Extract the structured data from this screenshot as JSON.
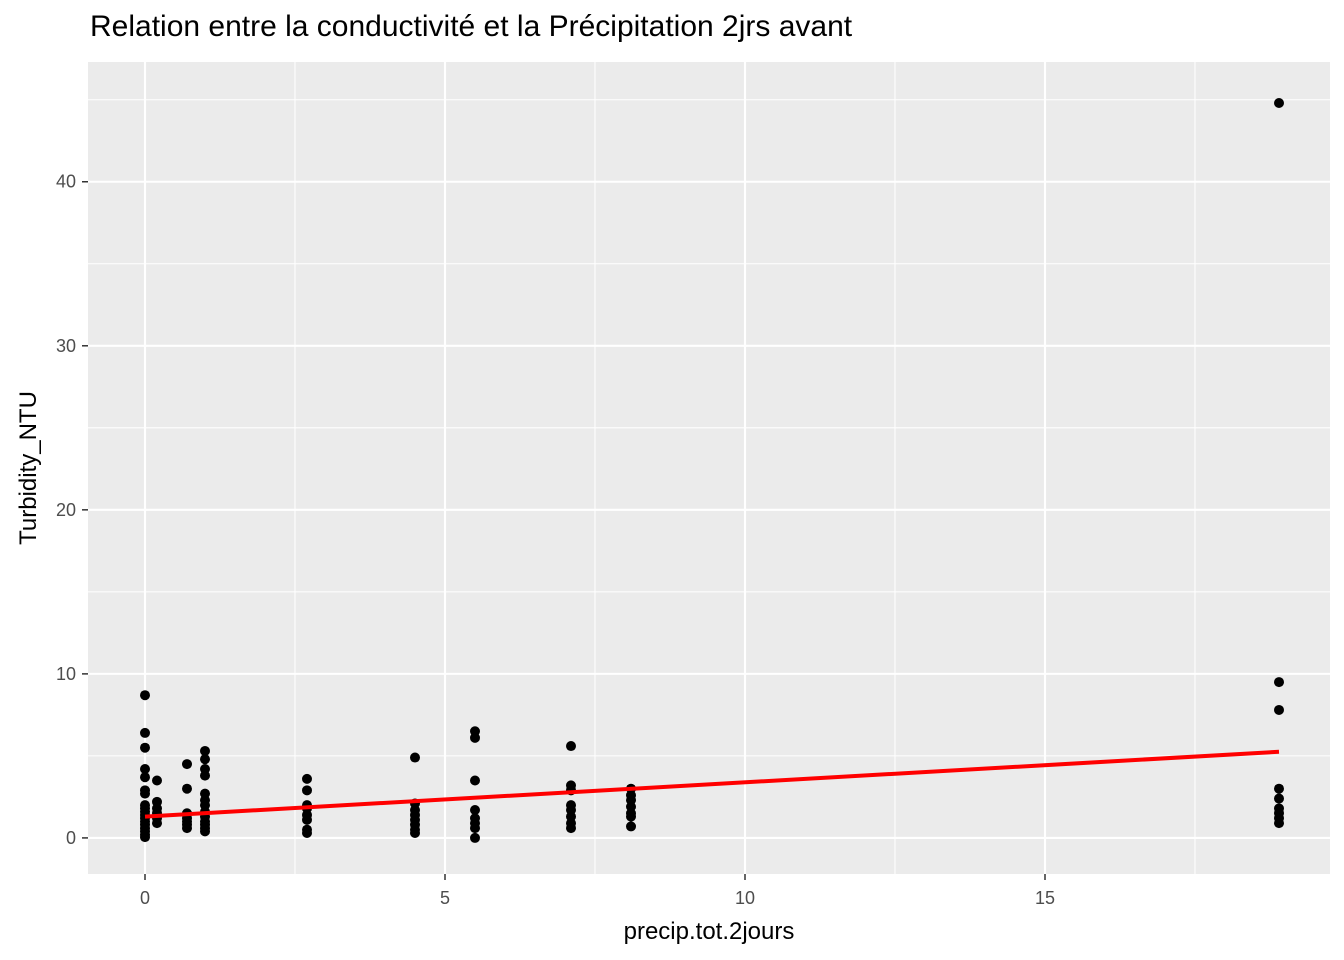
{
  "chart_data": {
    "type": "scatter",
    "title": "Relation entre la conductivité et la Précipitation 2jrs avant",
    "xlabel": "precip.tot.2jours",
    "ylabel": "Turbidity_NTU",
    "xlim": [
      -0.95,
      19.75
    ],
    "ylim": [
      -2.2,
      47.3
    ],
    "x_ticks": [
      0,
      5,
      10,
      15
    ],
    "x_tick_labels": [
      "0",
      "5",
      "10",
      "15"
    ],
    "y_ticks": [
      0,
      10,
      20,
      30,
      40
    ],
    "y_tick_labels": [
      "0",
      "10",
      "20",
      "30",
      "40"
    ],
    "grid": true,
    "legend": "none",
    "colors": {
      "panel_bg": "#EBEBEB",
      "grid": "#FFFFFF",
      "points": "#000000",
      "trend": "#FF0000"
    },
    "points": [
      {
        "x": 0,
        "y": 8.7
      },
      {
        "x": 0,
        "y": 6.4
      },
      {
        "x": 0,
        "y": 5.5
      },
      {
        "x": 0,
        "y": 4.2
      },
      {
        "x": 0,
        "y": 3.7
      },
      {
        "x": 0,
        "y": 2.9
      },
      {
        "x": 0,
        "y": 2.7
      },
      {
        "x": 0,
        "y": 2.0
      },
      {
        "x": 0,
        "y": 1.8
      },
      {
        "x": 0,
        "y": 1.6
      },
      {
        "x": 0,
        "y": 1.4
      },
      {
        "x": 0,
        "y": 1.2
      },
      {
        "x": 0,
        "y": 1.0
      },
      {
        "x": 0,
        "y": 0.8
      },
      {
        "x": 0,
        "y": 0.6
      },
      {
        "x": 0,
        "y": 0.4
      },
      {
        "x": 0,
        "y": 0.2
      },
      {
        "x": 0,
        "y": 0.05
      },
      {
        "x": 0.2,
        "y": 3.5
      },
      {
        "x": 0.2,
        "y": 2.2
      },
      {
        "x": 0.2,
        "y": 1.8
      },
      {
        "x": 0.2,
        "y": 1.5
      },
      {
        "x": 0.2,
        "y": 1.2
      },
      {
        "x": 0.2,
        "y": 0.9
      },
      {
        "x": 0.7,
        "y": 4.5
      },
      {
        "x": 0.7,
        "y": 3.0
      },
      {
        "x": 0.7,
        "y": 1.5
      },
      {
        "x": 0.7,
        "y": 1.2
      },
      {
        "x": 0.7,
        "y": 1.0
      },
      {
        "x": 0.7,
        "y": 0.8
      },
      {
        "x": 0.7,
        "y": 0.6
      },
      {
        "x": 1.0,
        "y": 5.3
      },
      {
        "x": 1.0,
        "y": 4.8
      },
      {
        "x": 1.0,
        "y": 4.2
      },
      {
        "x": 1.0,
        "y": 3.8
      },
      {
        "x": 1.0,
        "y": 2.7
      },
      {
        "x": 1.0,
        "y": 2.3
      },
      {
        "x": 1.0,
        "y": 2.0
      },
      {
        "x": 1.0,
        "y": 1.6
      },
      {
        "x": 1.0,
        "y": 1.3
      },
      {
        "x": 1.0,
        "y": 1.0
      },
      {
        "x": 1.0,
        "y": 0.8
      },
      {
        "x": 1.0,
        "y": 0.6
      },
      {
        "x": 1.0,
        "y": 0.4
      },
      {
        "x": 2.7,
        "y": 3.6
      },
      {
        "x": 2.7,
        "y": 2.9
      },
      {
        "x": 2.7,
        "y": 2.0
      },
      {
        "x": 2.7,
        "y": 1.8
      },
      {
        "x": 2.7,
        "y": 1.4
      },
      {
        "x": 2.7,
        "y": 1.1
      },
      {
        "x": 2.7,
        "y": 0.5
      },
      {
        "x": 2.7,
        "y": 0.3
      },
      {
        "x": 4.5,
        "y": 4.9
      },
      {
        "x": 4.5,
        "y": 2.1
      },
      {
        "x": 4.5,
        "y": 1.7
      },
      {
        "x": 4.5,
        "y": 1.4
      },
      {
        "x": 4.5,
        "y": 1.1
      },
      {
        "x": 4.5,
        "y": 0.8
      },
      {
        "x": 4.5,
        "y": 0.5
      },
      {
        "x": 4.5,
        "y": 0.3
      },
      {
        "x": 5.5,
        "y": 6.5
      },
      {
        "x": 5.5,
        "y": 6.1
      },
      {
        "x": 5.5,
        "y": 3.5
      },
      {
        "x": 5.5,
        "y": 1.7
      },
      {
        "x": 5.5,
        "y": 1.2
      },
      {
        "x": 5.5,
        "y": 0.9
      },
      {
        "x": 5.5,
        "y": 0.6
      },
      {
        "x": 5.5,
        "y": 0.0
      },
      {
        "x": 7.1,
        "y": 5.6
      },
      {
        "x": 7.1,
        "y": 3.2
      },
      {
        "x": 7.1,
        "y": 2.9
      },
      {
        "x": 7.1,
        "y": 2.0
      },
      {
        "x": 7.1,
        "y": 1.7
      },
      {
        "x": 7.1,
        "y": 1.3
      },
      {
        "x": 7.1,
        "y": 0.9
      },
      {
        "x": 7.1,
        "y": 0.6
      },
      {
        "x": 8.1,
        "y": 3.0
      },
      {
        "x": 8.1,
        "y": 2.6
      },
      {
        "x": 8.1,
        "y": 2.3
      },
      {
        "x": 8.1,
        "y": 1.9
      },
      {
        "x": 8.1,
        "y": 1.5
      },
      {
        "x": 8.1,
        "y": 1.3
      },
      {
        "x": 8.1,
        "y": 0.7
      },
      {
        "x": 18.9,
        "y": 44.8
      },
      {
        "x": 18.9,
        "y": 9.5
      },
      {
        "x": 18.9,
        "y": 7.8
      },
      {
        "x": 18.9,
        "y": 3.0
      },
      {
        "x": 18.9,
        "y": 2.4
      },
      {
        "x": 18.9,
        "y": 1.8
      },
      {
        "x": 18.9,
        "y": 1.5
      },
      {
        "x": 18.9,
        "y": 1.2
      },
      {
        "x": 18.9,
        "y": 0.9
      }
    ],
    "trend_line": {
      "x": [
        0,
        18.9
      ],
      "y": [
        1.3,
        5.25
      ]
    }
  }
}
